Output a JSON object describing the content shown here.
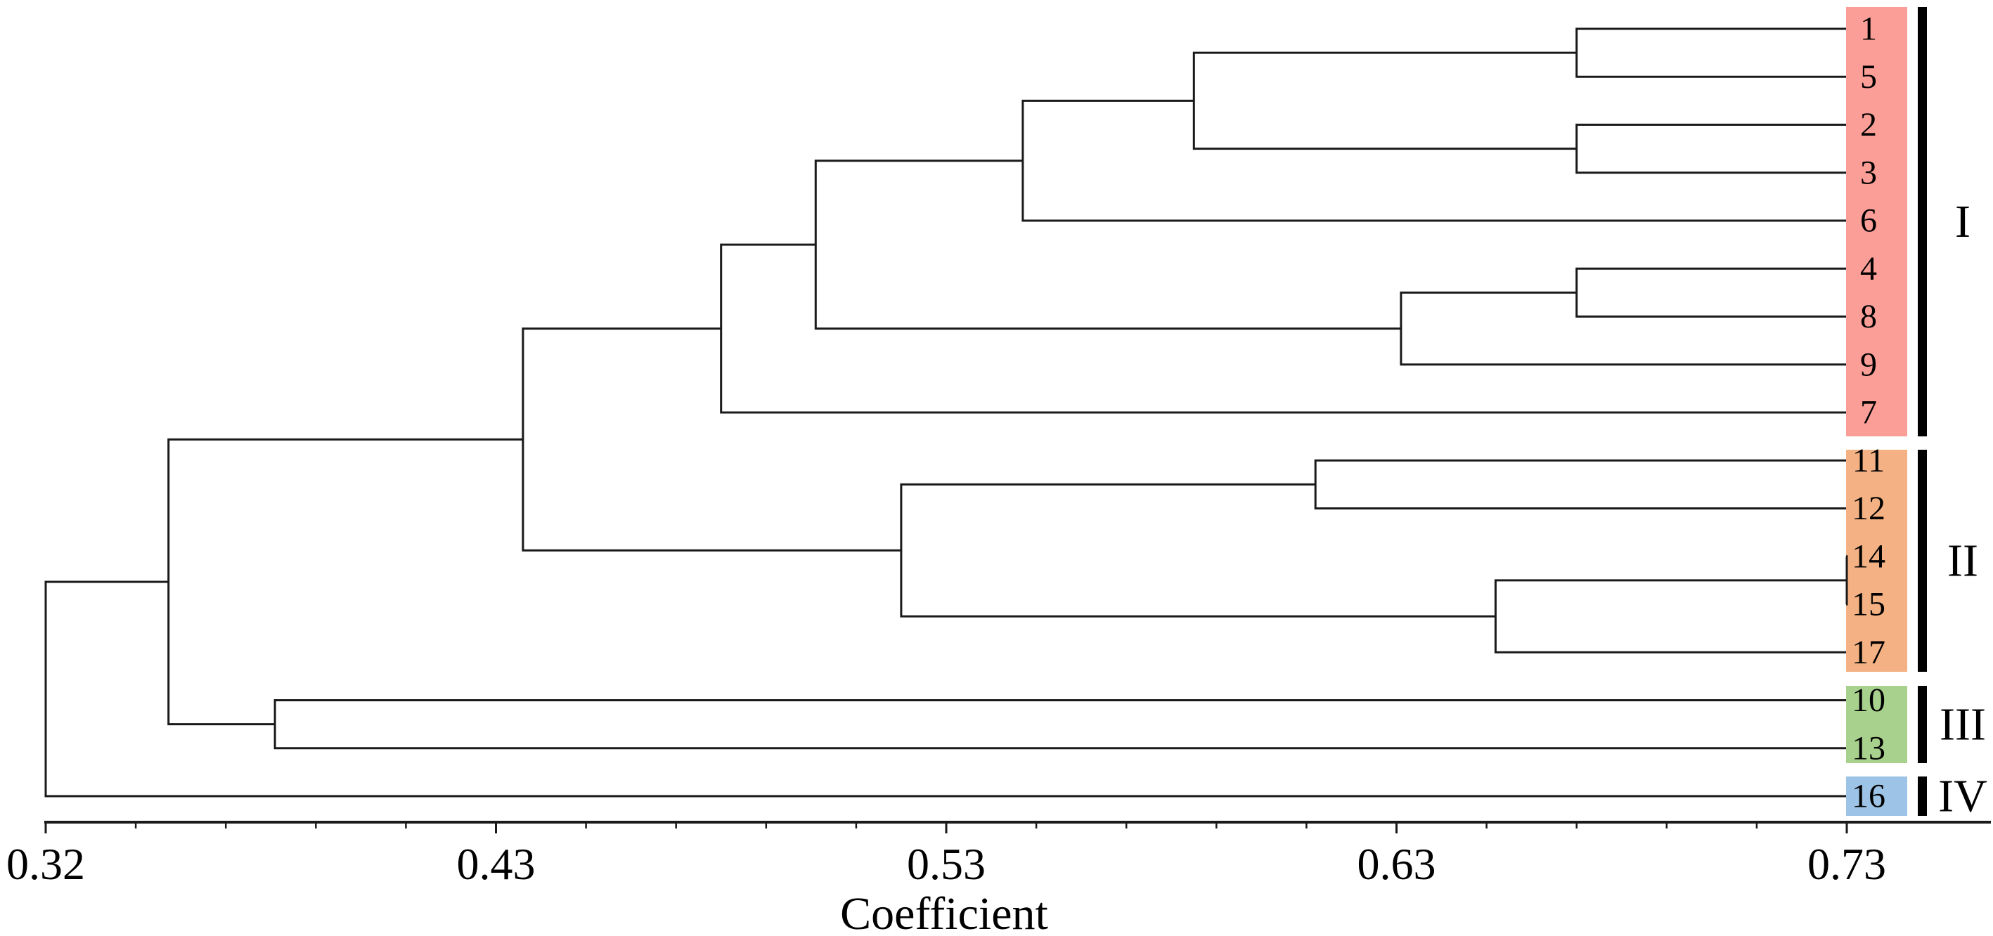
{
  "chart_data": {
    "type": "dendrogram",
    "orientation": "horizontal-left-to-right",
    "title": "",
    "xlabel": "Coefficient",
    "background": "#FFFFFF",
    "line_color": "#1A1A1A",
    "axis": {
      "label": "Coefficient",
      "tick_labels": [
        "0.32",
        "0.43",
        "0.53",
        "0.63",
        "0.73"
      ],
      "tick_values": [
        0.32,
        0.43,
        0.53,
        0.63,
        0.73
      ],
      "minor_ticks_per_interval": 4,
      "range": [
        0.32,
        0.73
      ]
    },
    "leaves": [
      {
        "label": "1",
        "cluster": "I"
      },
      {
        "label": "5",
        "cluster": "I"
      },
      {
        "label": "2",
        "cluster": "I"
      },
      {
        "label": "3",
        "cluster": "I"
      },
      {
        "label": "6",
        "cluster": "I"
      },
      {
        "label": "4",
        "cluster": "I"
      },
      {
        "label": "8",
        "cluster": "I"
      },
      {
        "label": "9",
        "cluster": "I"
      },
      {
        "label": "7",
        "cluster": "I"
      },
      {
        "label": "11",
        "cluster": "II"
      },
      {
        "label": "12",
        "cluster": "II"
      },
      {
        "label": "14",
        "cluster": "II"
      },
      {
        "label": "15",
        "cluster": "II"
      },
      {
        "label": "17",
        "cluster": "II"
      },
      {
        "label": "10",
        "cluster": "III"
      },
      {
        "label": "13",
        "cluster": "III"
      },
      {
        "label": "16",
        "cluster": "IV"
      }
    ],
    "clusters": [
      {
        "name": "I",
        "color": "#FA9E97",
        "bar_color": "#000000",
        "leaves": [
          "1",
          "5",
          "2",
          "3",
          "6",
          "4",
          "8",
          "9",
          "7"
        ]
      },
      {
        "name": "II",
        "color": "#F4B183",
        "bar_color": "#000000",
        "leaves": [
          "11",
          "12",
          "14",
          "15",
          "17"
        ]
      },
      {
        "name": "III",
        "color": "#A9D18E",
        "bar_color": "#000000",
        "leaves": [
          "10",
          "13"
        ]
      },
      {
        "name": "IV",
        "color": "#9DC3E6",
        "bar_color": "#000000",
        "leaves": [
          "16"
        ]
      }
    ],
    "merges": [
      {
        "id": "n1",
        "a": "1",
        "b": "5",
        "coefficient": 0.67
      },
      {
        "id": "n2",
        "a": "2",
        "b": "3",
        "coefficient": 0.67
      },
      {
        "id": "n3",
        "a": "n1",
        "b": "n2",
        "coefficient": 0.585
      },
      {
        "id": "n4",
        "a": "n3",
        "b": "6",
        "coefficient": 0.547
      },
      {
        "id": "n5",
        "a": "4",
        "b": "8",
        "coefficient": 0.67
      },
      {
        "id": "n6",
        "a": "n5",
        "b": "9",
        "coefficient": 0.631
      },
      {
        "id": "n7",
        "a": "n4",
        "b": "n6",
        "coefficient": 0.501
      },
      {
        "id": "n8",
        "a": "n7",
        "b": "7",
        "coefficient": 0.48
      },
      {
        "id": "n9",
        "a": "11",
        "b": "12",
        "coefficient": 0.612
      },
      {
        "id": "n10",
        "a": "14",
        "b": "15",
        "coefficient": 0.73
      },
      {
        "id": "n11",
        "a": "n10",
        "b": "17",
        "coefficient": 0.652
      },
      {
        "id": "n12",
        "a": "n9",
        "b": "n11",
        "coefficient": 0.52
      },
      {
        "id": "n13",
        "a": "n8",
        "b": "n12",
        "coefficient": 0.436
      },
      {
        "id": "n14",
        "a": "10",
        "b": "13",
        "coefficient": 0.376
      },
      {
        "id": "n15",
        "a": "n13",
        "b": "n14",
        "coefficient": 0.35
      },
      {
        "id": "n16",
        "a": "n15",
        "b": "16",
        "coefficient": 0.32
      }
    ]
  }
}
